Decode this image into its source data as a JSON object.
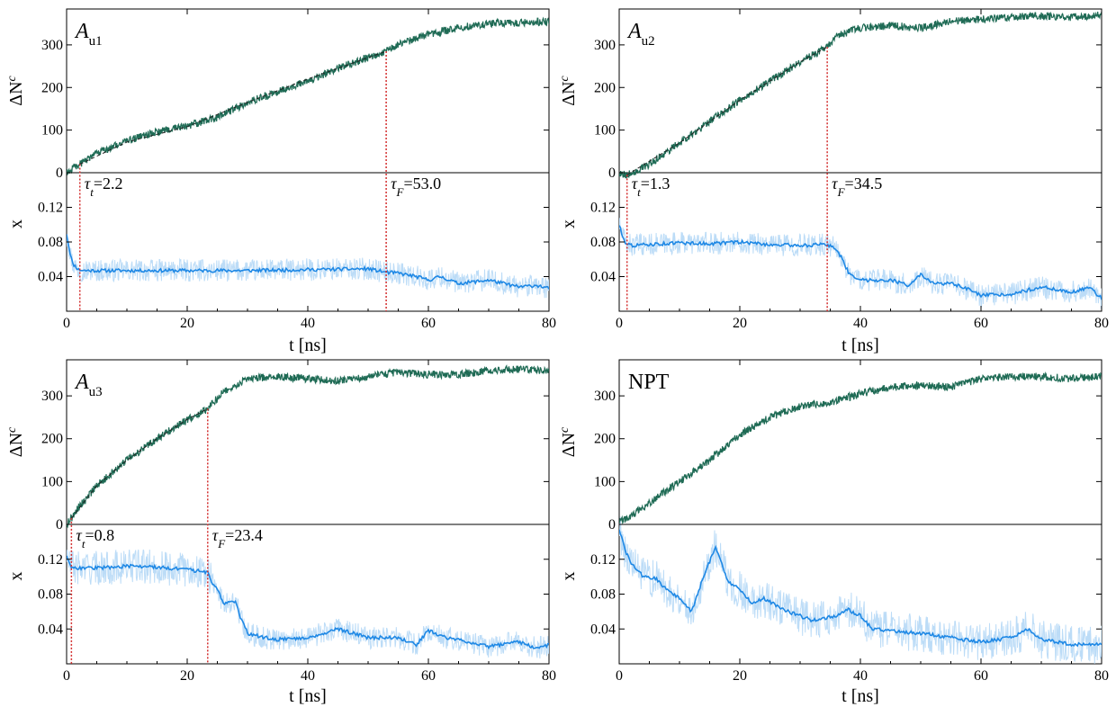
{
  "figure": {
    "colors": {
      "delta_n_line": "#1f6b55",
      "x_raw": "#bcdcf7",
      "x_smooth": "#1e88e5",
      "marker": "#d32f2f",
      "fit": "#222222"
    }
  },
  "chart_data": [
    {
      "type": "line",
      "panel_label": {
        "main": "A",
        "sub": "u1"
      },
      "xlabel": "t [ns]",
      "xlim": [
        0,
        80
      ],
      "x_ticks": [
        0,
        20,
        40,
        60,
        80
      ],
      "top": {
        "ylabel": "ΔN",
        "ylabel_sup": "c",
        "ylim": [
          -5,
          380
        ],
        "y_ticks": [
          0,
          100,
          200,
          300
        ],
        "series": [
          {
            "x": [
              0,
              2.2,
              5,
              10,
              15,
              20,
              25,
              30,
              35,
              40,
              45,
              50,
              53,
              55,
              60,
              65,
              70,
              75,
              80
            ],
            "values": [
              0,
              20,
              45,
              75,
              95,
              110,
              130,
              165,
              190,
              215,
              245,
              270,
              285,
              300,
              325,
              340,
              350,
              352,
              355
            ]
          }
        ],
        "fit": {
          "x": [
            2.2,
            10,
            20,
            30,
            40,
            53
          ],
          "values": [
            20,
            72,
            108,
            165,
            220,
            285
          ]
        }
      },
      "bottom": {
        "ylabel": "x",
        "ylim": [
          0.0,
          0.16
        ],
        "y_ticks": [
          0.04,
          0.08,
          0.12
        ],
        "series": [
          {
            "x": [
              0,
              0.5,
              1,
              2,
              3,
              5,
              10,
              20,
              30,
              40,
              50,
              53,
              55,
              58,
              60,
              62,
              65,
              70,
              75,
              78,
              80
            ],
            "values": [
              0.09,
              0.07,
              0.055,
              0.048,
              0.047,
              0.047,
              0.047,
              0.047,
              0.047,
              0.048,
              0.049,
              0.045,
              0.044,
              0.04,
              0.036,
              0.04,
              0.032,
              0.036,
              0.028,
              0.03,
              0.026
            ]
          }
        ]
      },
      "markers": [
        {
          "x": 2.2,
          "label_main": "τ",
          "label_sub": "t",
          "label_value": "=2.2"
        },
        {
          "x": 53.0,
          "label_main": "τ",
          "label_sub": "F",
          "label_value": "=53.0"
        }
      ]
    },
    {
      "type": "line",
      "panel_label": {
        "main": "A",
        "sub": "u2"
      },
      "xlabel": "t [ns]",
      "xlim": [
        0,
        80
      ],
      "x_ticks": [
        0,
        20,
        40,
        60,
        80
      ],
      "top": {
        "ylabel": "ΔN",
        "ylabel_sup": "c",
        "ylim": [
          -5,
          380
        ],
        "y_ticks": [
          0,
          100,
          200,
          300
        ],
        "series": [
          {
            "x": [
              0,
              1.3,
              3,
              5,
              10,
              15,
              20,
              25,
              30,
              34.5,
              36,
              40,
              45,
              50,
              55,
              60,
              65,
              70,
              75,
              80
            ],
            "values": [
              0,
              -5,
              5,
              20,
              70,
              120,
              170,
              215,
              260,
              295,
              320,
              340,
              345,
              340,
              355,
              360,
              365,
              368,
              365,
              370
            ]
          }
        ],
        "fit": {
          "x": [
            1.3,
            10,
            20,
            30,
            34.5
          ],
          "values": [
            -5,
            70,
            170,
            260,
            295
          ]
        }
      },
      "bottom": {
        "ylabel": "x",
        "ylim": [
          0.0,
          0.16
        ],
        "y_ticks": [
          0.04,
          0.08,
          0.12
        ],
        "series": [
          {
            "x": [
              0,
              0.5,
              1,
              2,
              5,
              10,
              15,
              20,
              25,
              30,
              34.5,
              36,
              37,
              38,
              40,
              45,
              48,
              50,
              52,
              55,
              58,
              60,
              65,
              70,
              75,
              78,
              80
            ],
            "values": [
              0.1,
              0.088,
              0.08,
              0.076,
              0.077,
              0.079,
              0.078,
              0.08,
              0.077,
              0.076,
              0.077,
              0.072,
              0.06,
              0.045,
              0.036,
              0.036,
              0.03,
              0.042,
              0.032,
              0.032,
              0.025,
              0.018,
              0.02,
              0.028,
              0.022,
              0.027,
              0.015
            ]
          }
        ]
      },
      "markers": [
        {
          "x": 1.3,
          "label_main": "τ",
          "label_sub": "t",
          "label_value": "=1.3"
        },
        {
          "x": 34.5,
          "label_main": "τ",
          "label_sub": "F",
          "label_value": "=34.5"
        }
      ]
    },
    {
      "type": "line",
      "panel_label": {
        "main": "A",
        "sub": "u3"
      },
      "xlabel": "t [ns]",
      "xlim": [
        0,
        80
      ],
      "x_ticks": [
        0,
        20,
        40,
        60,
        80
      ],
      "top": {
        "ylabel": "ΔN",
        "ylabel_sup": "c",
        "ylim": [
          -5,
          380
        ],
        "y_ticks": [
          0,
          100,
          200,
          300
        ],
        "series": [
          {
            "x": [
              0,
              0.8,
              2,
              5,
              10,
              15,
              20,
              23.4,
              26,
              30,
              35,
              40,
              45,
              50,
              55,
              60,
              65,
              70,
              75,
              80
            ],
            "values": [
              0,
              15,
              40,
              90,
              150,
              200,
              245,
              270,
              310,
              340,
              345,
              340,
              335,
              345,
              355,
              350,
              350,
              360,
              362,
              358
            ]
          }
        ],
        "fit": {
          "x": [
            0.8,
            5,
            10,
            15,
            20,
            23.4
          ],
          "values": [
            15,
            90,
            150,
            200,
            245,
            270
          ]
        }
      },
      "bottom": {
        "ylabel": "x",
        "ylim": [
          0.0,
          0.16
        ],
        "y_ticks": [
          0.04,
          0.08,
          0.12
        ],
        "series": [
          {
            "x": [
              0,
              0.4,
              0.8,
              2,
              5,
              10,
              15,
              20,
              23.4,
              24,
              25,
              26,
              28,
              29,
              30,
              33,
              35,
              40,
              45,
              50,
              55,
              58,
              60,
              63,
              65,
              70,
              75,
              78,
              80
            ],
            "values": [
              0.125,
              0.115,
              0.112,
              0.11,
              0.11,
              0.112,
              0.111,
              0.108,
              0.105,
              0.095,
              0.085,
              0.07,
              0.072,
              0.05,
              0.035,
              0.03,
              0.028,
              0.03,
              0.04,
              0.03,
              0.03,
              0.022,
              0.038,
              0.03,
              0.028,
              0.02,
              0.025,
              0.018,
              0.022
            ]
          }
        ]
      },
      "markers": [
        {
          "x": 0.8,
          "label_main": "τ",
          "label_sub": "t",
          "label_value": "=0.8"
        },
        {
          "x": 23.4,
          "label_main": "τ",
          "label_sub": "F",
          "label_value": "=23.4"
        }
      ]
    },
    {
      "type": "line",
      "panel_label": {
        "main": "NPT",
        "sub": ""
      },
      "xlabel": "t [ns]",
      "xlim": [
        0,
        80
      ],
      "x_ticks": [
        0,
        20,
        40,
        60,
        80
      ],
      "top": {
        "ylabel": "ΔN",
        "ylabel_sup": "c",
        "ylim": [
          -5,
          380
        ],
        "y_ticks": [
          0,
          100,
          200,
          300
        ],
        "series": [
          {
            "x": [
              0,
              2,
              5,
              10,
              15,
              20,
              25,
              30,
              35,
              40,
              45,
              50,
              55,
              60,
              65,
              70,
              75,
              80
            ],
            "values": [
              5,
              20,
              50,
              100,
              150,
              210,
              250,
              275,
              285,
              305,
              320,
              325,
              320,
              340,
              345,
              345,
              340,
              345
            ]
          }
        ]
      },
      "bottom": {
        "ylabel": "x",
        "ylim": [
          0.0,
          0.16
        ],
        "y_ticks": [
          0.04,
          0.08,
          0.12
        ],
        "series": [
          {
            "x": [
              0,
              1,
              2,
              4,
              6,
              8,
              10,
              12,
              14,
              16,
              18,
              20,
              22,
              24,
              28,
              32,
              36,
              38,
              40,
              42,
              45,
              50,
              55,
              60,
              65,
              68,
              70,
              75,
              80
            ],
            "values": [
              0.155,
              0.13,
              0.115,
              0.1,
              0.098,
              0.085,
              0.075,
              0.06,
              0.1,
              0.135,
              0.095,
              0.085,
              0.07,
              0.075,
              0.06,
              0.05,
              0.055,
              0.062,
              0.055,
              0.04,
              0.038,
              0.035,
              0.03,
              0.025,
              0.03,
              0.04,
              0.028,
              0.022,
              0.022
            ]
          }
        ]
      },
      "markers": []
    }
  ]
}
